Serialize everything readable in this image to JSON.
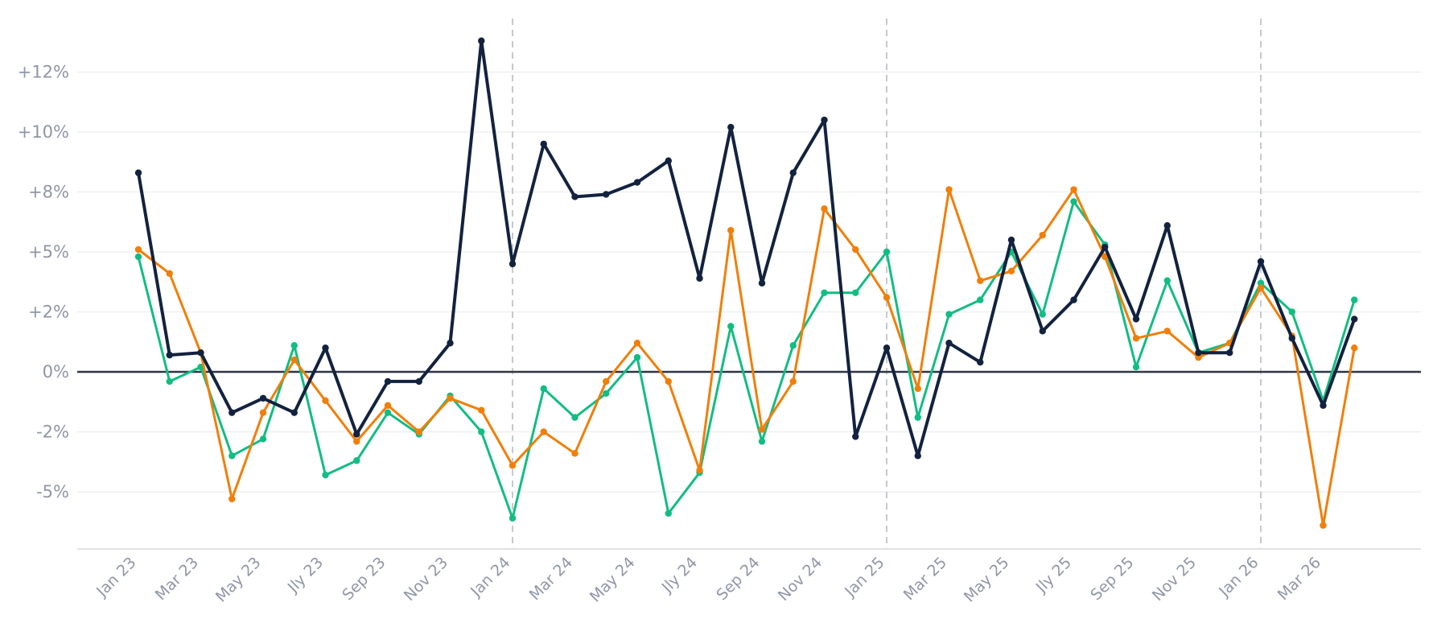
{
  "chart_data": {
    "type": "line",
    "title": "",
    "xlabel": "",
    "ylabel": "",
    "ylim": [
      -7.5,
      14.2
    ],
    "grid": true,
    "legend": "none",
    "y_ticks": [
      {
        "value": -5,
        "label": "-5%"
      },
      {
        "value": -2.5,
        "label": "-2%"
      },
      {
        "value": 0,
        "label": "0%"
      },
      {
        "value": 2.5,
        "label": "+2%"
      },
      {
        "value": 5,
        "label": "+5%"
      },
      {
        "value": 7.5,
        "label": "+8%"
      },
      {
        "value": 10,
        "label": "+10%"
      },
      {
        "value": 12.5,
        "label": "+12%"
      }
    ],
    "x_tick_labels": [
      "Jan 23",
      "Mar 23",
      "May 23",
      "Jly 23",
      "Sep 23",
      "Nov 23",
      "Jan 24",
      "Mar 24",
      "May 24",
      "Jly 24",
      "Sep 24",
      "Nov 24",
      "Jan 25",
      "Mar 25",
      "May 25",
      "Jly 25",
      "Sep 25",
      "Nov 25",
      "Jan 26",
      "Mar 26"
    ],
    "x_tick_months": [
      0,
      2,
      4,
      6,
      8,
      10,
      12,
      14,
      16,
      18,
      20,
      22,
      24,
      26,
      28,
      30,
      32,
      34,
      36,
      38
    ],
    "year_boundaries": [
      12,
      24,
      36
    ],
    "x": [
      "Jan 23",
      "Feb 23",
      "Mar 23",
      "Apr 23",
      "May 23",
      "Jun 23",
      "Jly 23",
      "Aug 23",
      "Sep 23",
      "Oct 23",
      "Nov 23",
      "Dec 23",
      "Jan 24",
      "Feb 24",
      "Mar 24",
      "Apr 24",
      "May 24",
      "Jun 24",
      "Jly 24",
      "Aug 24",
      "Sep 24",
      "Oct 24",
      "Nov 24",
      "Dec 24",
      "Jan 25",
      "Feb 25",
      "Mar 25",
      "Apr 25",
      "May 25",
      "Jun 25",
      "Jly 25",
      "Aug 25",
      "Sep 25",
      "Oct 25",
      "Nov 25",
      "Dec 25",
      "Jan 26",
      "Feb 26",
      "Mar 26",
      "Apr 26"
    ],
    "series": [
      {
        "color": "#12223f",
        "values": [
          8.3,
          0.7,
          0.8,
          -1.7,
          -1.1,
          -1.7,
          1.0,
          -2.6,
          -0.4,
          -0.4,
          1.2,
          13.8,
          4.5,
          9.5,
          7.3,
          7.4,
          7.9,
          8.8,
          3.9,
          10.2,
          3.7,
          8.3,
          10.5,
          -2.7,
          1.0,
          -3.5,
          1.2,
          0.4,
          5.5,
          1.7,
          3.0,
          5.2,
          2.2,
          6.1,
          0.8,
          0.8,
          4.6,
          1.4,
          -1.4,
          2.2
        ]
      },
      {
        "color": "#f07f09",
        "values": [
          5.1,
          4.1,
          0.8,
          -5.3,
          -1.7,
          0.5,
          -1.2,
          -2.9,
          -1.4,
          -2.5,
          -1.1,
          -1.6,
          -3.9,
          -2.5,
          -3.4,
          -0.4,
          1.2,
          -0.4,
          -4.1,
          5.9,
          -2.4,
          -0.4,
          6.8,
          5.1,
          3.1,
          -0.7,
          7.6,
          3.8,
          4.2,
          5.7,
          7.6,
          4.8,
          1.4,
          1.7,
          0.6,
          1.2,
          3.5,
          1.5,
          -6.4,
          1.0
        ]
      },
      {
        "color": "#12bd81",
        "values": [
          4.8,
          -0.4,
          0.2,
          -3.5,
          -2.8,
          1.1,
          -4.3,
          -3.7,
          -1.7,
          -2.6,
          -1.0,
          -2.5,
          -6.1,
          -0.7,
          -1.9,
          -0.9,
          0.6,
          -5.9,
          -4.2,
          1.9,
          -2.9,
          1.1,
          3.3,
          3.3,
          5.0,
          -1.9,
          2.4,
          3.0,
          5.0,
          2.4,
          7.1,
          5.3,
          0.2,
          3.8,
          0.8,
          1.2,
          3.7,
          2.5,
          -1.2,
          3.0
        ]
      }
    ]
  },
  "colors": {
    "grid": "#eeeff2",
    "zero_line": "#2f3545",
    "x_axis": "#d6d8de",
    "boundary": "#c6c9d0",
    "tick_text": "#8f96a8"
  }
}
